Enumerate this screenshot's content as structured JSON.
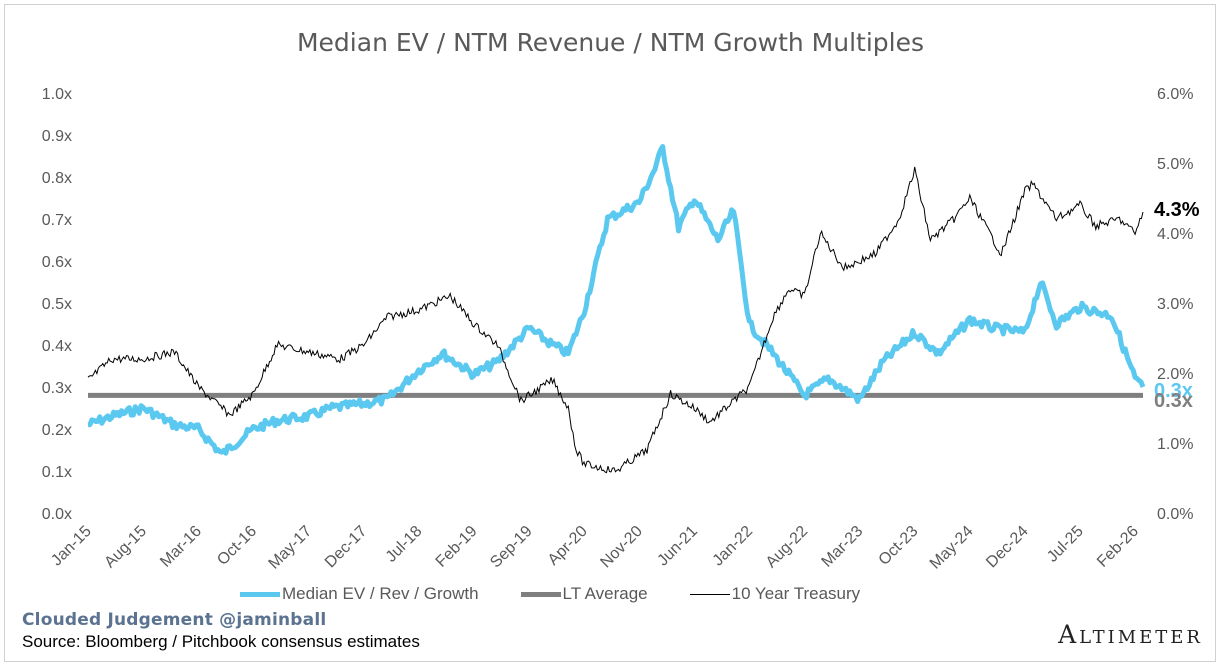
{
  "chart_data": {
    "type": "line",
    "title": "Median EV / NTM Revenue / NTM Growth Multiples",
    "x_tick_labels": [
      "Jan-15",
      "Aug-15",
      "Mar-16",
      "Oct-16",
      "May-17",
      "Dec-17",
      "Jul-18",
      "Feb-19",
      "Sep-19",
      "Apr-20",
      "Nov-20",
      "Jun-21",
      "Jan-22",
      "Aug-22",
      "Mar-23",
      "Oct-23",
      "May-24",
      "Dec-24",
      "Jul-25",
      "Feb-26"
    ],
    "y_left": {
      "ticks": [
        "0.0x",
        "0.1x",
        "0.2x",
        "0.3x",
        "0.4x",
        "0.5x",
        "0.6x",
        "0.7x",
        "0.8x",
        "0.9x",
        "1.0x"
      ],
      "range": [
        0,
        1.0
      ]
    },
    "y_right": {
      "ticks": [
        "0.0%",
        "1.0%",
        "2.0%",
        "3.0%",
        "4.0%",
        "5.0%",
        "6.0%"
      ],
      "range": [
        0,
        6.0
      ]
    },
    "series": [
      {
        "name": "Median EV / Rev / Growth",
        "axis": "left",
        "color": "#5BC8F0",
        "x": [
          "Jan-15",
          "Apr-15",
          "Aug-15",
          "Dec-15",
          "Mar-16",
          "Jun-16",
          "Oct-16",
          "Jan-17",
          "May-17",
          "Aug-17",
          "Dec-17",
          "Mar-18",
          "Jul-18",
          "Oct-18",
          "Feb-19",
          "May-19",
          "Sep-19",
          "Dec-19",
          "Feb-20",
          "Mar-20",
          "Apr-20",
          "Jul-20",
          "Nov-20",
          "Jan-21",
          "Feb-21",
          "Apr-21",
          "Jun-21",
          "Sep-21",
          "Nov-21",
          "Jan-22",
          "Apr-22",
          "Aug-22",
          "Nov-22",
          "Mar-23",
          "Jun-23",
          "Oct-23",
          "Jan-24",
          "May-24",
          "Aug-24",
          "Dec-24",
          "Feb-25",
          "Apr-25",
          "Jul-25",
          "Nov-25",
          "Feb-26",
          "Mar-26"
        ],
        "y": [
          0.21,
          0.23,
          0.25,
          0.21,
          0.2,
          0.14,
          0.2,
          0.22,
          0.23,
          0.25,
          0.26,
          0.27,
          0.34,
          0.38,
          0.33,
          0.36,
          0.44,
          0.4,
          0.38,
          0.43,
          0.48,
          0.7,
          0.74,
          0.82,
          0.87,
          0.68,
          0.75,
          0.65,
          0.72,
          0.45,
          0.38,
          0.28,
          0.32,
          0.27,
          0.36,
          0.43,
          0.38,
          0.46,
          0.44,
          0.43,
          0.55,
          0.45,
          0.49,
          0.47,
          0.32,
          0.3
        ]
      },
      {
        "name": "LT Average",
        "axis": "left",
        "color": "#7F7F7F",
        "x": [
          "Jan-15",
          "Mar-26"
        ],
        "y": [
          0.28,
          0.28
        ]
      },
      {
        "name": "10 Year Treasury",
        "axis": "right",
        "color": "#000000",
        "x": [
          "Jan-15",
          "Apr-15",
          "Aug-15",
          "Dec-15",
          "Mar-16",
          "Jul-16",
          "Oct-16",
          "Jan-17",
          "May-17",
          "Sep-17",
          "Dec-17",
          "Mar-18",
          "Jul-18",
          "Nov-18",
          "Feb-19",
          "May-19",
          "Aug-19",
          "Dec-19",
          "Feb-20",
          "Mar-20",
          "Apr-20",
          "Aug-20",
          "Dec-20",
          "Mar-21",
          "Jun-21",
          "Aug-21",
          "Nov-21",
          "Jan-22",
          "Apr-22",
          "Jun-22",
          "Aug-22",
          "Oct-22",
          "Jan-23",
          "Mar-23",
          "May-23",
          "Aug-23",
          "Oct-23",
          "Dec-23",
          "Mar-24",
          "May-24",
          "Sep-24",
          "Dec-24",
          "Jan-25",
          "Apr-25",
          "Jul-25",
          "Sep-25",
          "Dec-25",
          "Feb-26",
          "Mar-26"
        ],
        "y": [
          1.9,
          2.2,
          2.2,
          2.3,
          1.8,
          1.4,
          1.7,
          2.4,
          2.3,
          2.2,
          2.4,
          2.8,
          2.9,
          3.1,
          2.7,
          2.4,
          1.6,
          1.9,
          1.5,
          0.9,
          0.7,
          0.6,
          0.9,
          1.7,
          1.5,
          1.3,
          1.6,
          1.8,
          2.8,
          3.2,
          3.1,
          4.0,
          3.5,
          3.6,
          3.7,
          4.2,
          4.9,
          3.9,
          4.2,
          4.5,
          3.7,
          4.6,
          4.7,
          4.2,
          4.4,
          4.1,
          4.2,
          4.0,
          4.3
        ]
      }
    ],
    "end_labels": [
      {
        "text": "4.3%",
        "color": "#000000"
      },
      {
        "text": "0.3x",
        "color": "#5BC8F0"
      },
      {
        "text": "0.3x",
        "color": "#7F7F7F"
      }
    ],
    "legend_position": "bottom",
    "grid": false
  },
  "footer": {
    "credit": "Clouded Judgement @jaminball",
    "source": "Source: Bloomberg / Pitchbook consensus estimates",
    "brand": "Altimeter"
  }
}
